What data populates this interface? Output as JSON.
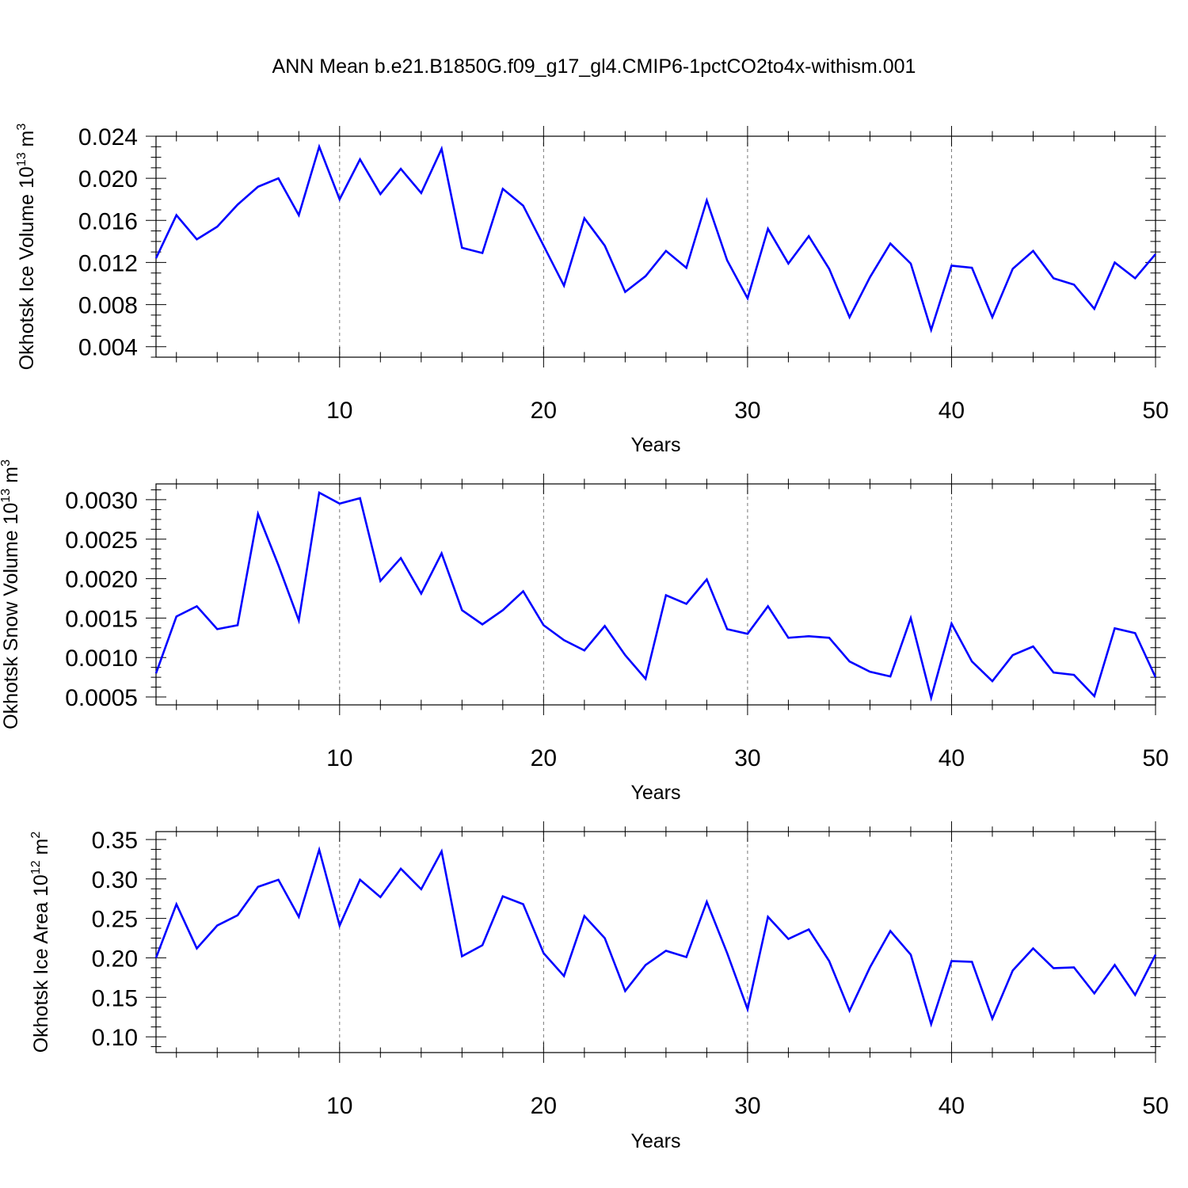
{
  "title": "ANN Mean b.e21.B1850G.f09_g17_gl4.CMIP6-1pctCO2to4x-withism.001",
  "line_color": "#0000ff",
  "chart_data": [
    {
      "type": "line",
      "xlabel": "Years",
      "ylabel": "Okhotsk Ice Volume 10",
      "ylabel_exp": "13",
      "ylabel_unit": " m",
      "ylabel_unit_exp": "3",
      "xlim": [
        1,
        50
      ],
      "ylim": [
        0.003,
        0.024
      ],
      "xticks": [
        10,
        20,
        30,
        40,
        50
      ],
      "yticks": [
        "0.004",
        "0.008",
        "0.012",
        "0.016",
        "0.020",
        "0.024"
      ],
      "grid": "vertical dashed at major x ticks",
      "x": [
        1,
        2,
        3,
        4,
        5,
        6,
        7,
        8,
        9,
        10,
        11,
        12,
        13,
        14,
        15,
        16,
        17,
        18,
        19,
        20,
        21,
        22,
        23,
        24,
        25,
        26,
        27,
        28,
        29,
        30,
        31,
        32,
        33,
        34,
        35,
        36,
        37,
        38,
        39,
        40,
        41,
        42,
        43,
        44,
        45,
        46,
        47,
        48,
        49,
        50
      ],
      "series": [
        {
          "values": [
            0.0124,
            0.0165,
            0.0142,
            0.0154,
            0.0175,
            0.0192,
            0.02,
            0.0165,
            0.023,
            0.018,
            0.0218,
            0.0185,
            0.0209,
            0.0186,
            0.0228,
            0.0134,
            0.0129,
            0.019,
            0.0174,
            0.0136,
            0.0098,
            0.0162,
            0.0136,
            0.0092,
            0.0107,
            0.0131,
            0.0115,
            0.0179,
            0.0122,
            0.0086,
            0.0152,
            0.0119,
            0.0145,
            0.0114,
            0.0068,
            0.0106,
            0.0138,
            0.0119,
            0.0056,
            0.0117,
            0.0115,
            0.0068,
            0.0114,
            0.0131,
            0.0105,
            0.0099,
            0.0076,
            0.012,
            0.0105,
            0.0128
          ]
        }
      ]
    },
    {
      "type": "line",
      "xlabel": "Years",
      "ylabel": "Okhotsk Snow Volume 10",
      "ylabel_exp": "13",
      "ylabel_unit": " m",
      "ylabel_unit_exp": "3",
      "xlim": [
        1,
        50
      ],
      "ylim": [
        0.0004,
        0.0032
      ],
      "xticks": [
        10,
        20,
        30,
        40,
        50
      ],
      "yticks": [
        "0.0005",
        "0.0010",
        "0.0015",
        "0.0020",
        "0.0025",
        "0.0030"
      ],
      "grid": "vertical dashed at major x ticks",
      "x": [
        1,
        2,
        3,
        4,
        5,
        6,
        7,
        8,
        9,
        10,
        11,
        12,
        13,
        14,
        15,
        16,
        17,
        18,
        19,
        20,
        21,
        22,
        23,
        24,
        25,
        26,
        27,
        28,
        29,
        30,
        31,
        32,
        33,
        34,
        35,
        36,
        37,
        38,
        39,
        40,
        41,
        42,
        43,
        44,
        45,
        46,
        47,
        48,
        49,
        50
      ],
      "series": [
        {
          "values": [
            0.0008,
            0.00152,
            0.00165,
            0.00136,
            0.00141,
            0.00282,
            0.00217,
            0.00147,
            0.00309,
            0.00295,
            0.00302,
            0.00197,
            0.00226,
            0.00181,
            0.00232,
            0.0016,
            0.00142,
            0.0016,
            0.00184,
            0.00141,
            0.00122,
            0.00109,
            0.0014,
            0.00103,
            0.00073,
            0.00179,
            0.00168,
            0.00199,
            0.00136,
            0.0013,
            0.00165,
            0.00125,
            0.00127,
            0.00125,
            0.00095,
            0.00082,
            0.00076,
            0.0015,
            0.00049,
            0.00143,
            0.00095,
            0.0007,
            0.00103,
            0.00114,
            0.00081,
            0.00078,
            0.00051,
            0.00137,
            0.00131,
            0.00075
          ]
        }
      ]
    },
    {
      "type": "line",
      "xlabel": "Years",
      "ylabel": "Okhotsk Ice Area 10",
      "ylabel_exp": "12",
      "ylabel_unit": " m",
      "ylabel_unit_exp": "2",
      "xlim": [
        1,
        50
      ],
      "ylim": [
        0.08,
        0.36
      ],
      "xticks": [
        10,
        20,
        30,
        40,
        50
      ],
      "yticks": [
        "0.10",
        "0.15",
        "0.20",
        "0.25",
        "0.30",
        "0.35"
      ],
      "grid": "vertical dashed at major x ticks",
      "x": [
        1,
        2,
        3,
        4,
        5,
        6,
        7,
        8,
        9,
        10,
        11,
        12,
        13,
        14,
        15,
        16,
        17,
        18,
        19,
        20,
        21,
        22,
        23,
        24,
        25,
        26,
        27,
        28,
        29,
        30,
        31,
        32,
        33,
        34,
        35,
        36,
        37,
        38,
        39,
        40,
        41,
        42,
        43,
        44,
        45,
        46,
        47,
        48,
        49,
        50
      ],
      "series": [
        {
          "values": [
            0.2,
            0.268,
            0.212,
            0.241,
            0.254,
            0.29,
            0.299,
            0.252,
            0.337,
            0.241,
            0.299,
            0.277,
            0.313,
            0.287,
            0.335,
            0.202,
            0.216,
            0.278,
            0.268,
            0.206,
            0.177,
            0.253,
            0.225,
            0.158,
            0.191,
            0.209,
            0.201,
            0.271,
            0.206,
            0.135,
            0.252,
            0.224,
            0.236,
            0.196,
            0.133,
            0.188,
            0.234,
            0.204,
            0.116,
            0.196,
            0.195,
            0.123,
            0.184,
            0.212,
            0.187,
            0.188,
            0.155,
            0.191,
            0.153,
            0.204
          ]
        }
      ]
    }
  ]
}
